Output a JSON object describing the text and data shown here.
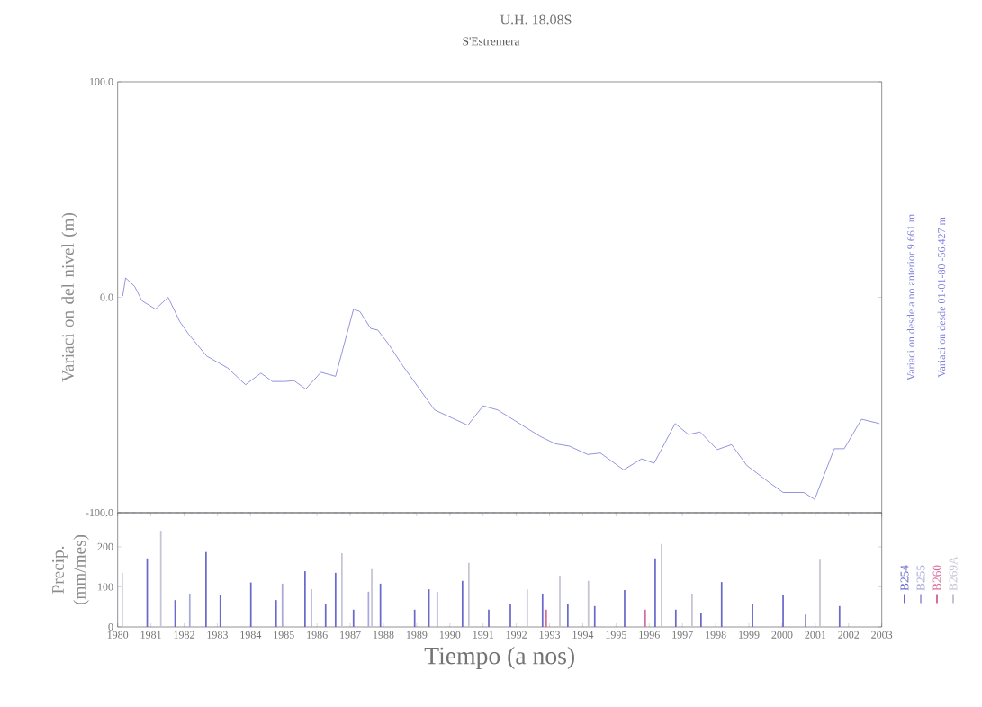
{
  "chart_data": [
    {
      "type": "line",
      "title": "U.H. 18.08S",
      "subtitle": "S'Estremera",
      "ylabel": "Variaci on del nivel (m)",
      "annotations": [
        "Variaci on desde a no anterior 9.661 m",
        "Variaci on desde 01-01-80 -56.427 m"
      ],
      "xlim": [
        1980,
        2003
      ],
      "ylim": [
        -100,
        100
      ],
      "yticks": [
        {
          "value": -100,
          "label": "-100.0"
        },
        {
          "value": 0,
          "label": "0.0"
        },
        {
          "value": 100,
          "label": "100.0"
        }
      ],
      "tick_labels": "y",
      "ref_lines": [
        {
          "axis": "y",
          "value": -100,
          "color": "#b0b0c8",
          "line_style": "dashed"
        }
      ],
      "series": [
        {
          "color": "#8c8cdc",
          "x": [
            1980.15,
            1980.24,
            1980.51,
            1980.73,
            1981.14,
            1981.52,
            1981.87,
            1982.14,
            1982.68,
            1983.31,
            1983.85,
            1984.31,
            1984.66,
            1985.04,
            1985.31,
            1985.66,
            1986.12,
            1986.56,
            1987.1,
            1987.29,
            1987.62,
            1987.83,
            1988.18,
            1988.56,
            1989.54,
            1990.54,
            1991.0,
            1991.44,
            1992.71,
            1993.17,
            1993.6,
            1994.15,
            1994.53,
            1995.23,
            1995.77,
            1996.15,
            1996.78,
            1997.18,
            1997.53,
            1998.05,
            1998.48,
            1998.94,
            1999.57,
            2000.03,
            2000.65,
            2000.98,
            2001.57,
            2001.87,
            2002.39,
            2002.93
          ],
          "values": [
            0.5,
            9.0,
            5.1,
            -1.6,
            -5.5,
            0,
            -11.3,
            -17.2,
            -27.3,
            -32.8,
            -40.6,
            -35.2,
            -39.1,
            -39.1,
            -38.7,
            -42.6,
            -34.8,
            -36.7,
            -5.5,
            -6.6,
            -14.5,
            -15.2,
            -22.3,
            -31.3,
            -52.3,
            -59.4,
            -50.4,
            -52.3,
            -64.5,
            -68.0,
            -69.1,
            -73.0,
            -72.3,
            -80.1,
            -75.0,
            -77.0,
            -58.6,
            -63.7,
            -62.5,
            -70.7,
            -68.4,
            -78.1,
            -85.5,
            -90.6,
            -90.6,
            -93.8,
            -70.3,
            -70.3,
            -56.6,
            -58.6
          ]
        }
      ]
    },
    {
      "type": "bar",
      "xlabel": "Tiempo (a nos)",
      "ylabel": "Precip. (mm/mes)",
      "xlim": [
        1980,
        2003
      ],
      "ylim": [
        0,
        285
      ],
      "xticks": [
        1980,
        1981,
        1982,
        1983,
        1984,
        1985,
        1986,
        1987,
        1988,
        1989,
        1990,
        1991,
        1992,
        1993,
        1994,
        1995,
        1996,
        1997,
        1998,
        1999,
        2000,
        2001,
        2002,
        2003
      ],
      "yticks": [
        0,
        100,
        200
      ],
      "legend": "right",
      "series": [
        {
          "name": "B254",
          "color": "#6a6acc",
          "x": [
            1980.89,
            1981.73,
            1982.66,
            1983.09,
            1984.01,
            1984.77,
            1985.64,
            1986.26,
            1986.56,
            1987.1,
            1987.91,
            1988.94,
            1989.37,
            1990.38,
            1991.17,
            1991.82,
            1992.79,
            1993.55,
            1994.36,
            1995.26,
            1996.18,
            1996.8,
            1997.56,
            1998.18,
            1999.11,
            2000.03,
            2000.71,
            2001.73
          ],
          "values": [
            171,
            67,
            187,
            79,
            111,
            67,
            139,
            56,
            135,
            43,
            108,
            43,
            94,
            115,
            43,
            58,
            83,
            58,
            52,
            92,
            171,
            43,
            36,
            112,
            58,
            79,
            31,
            52
          ]
        },
        {
          "name": "B255",
          "color": "#a8a8dc",
          "x": [
            1982.17,
            1984.96,
            1985.83,
            1987.55,
            1989.62
          ],
          "values": [
            83,
            108,
            94,
            88,
            88
          ]
        },
        {
          "name": "B260",
          "color": "#d86c9c",
          "x": [
            1992.9,
            1995.88
          ],
          "values": [
            43,
            43
          ]
        },
        {
          "name": "B269A",
          "color": "#c4c4d4",
          "x": [
            1980.14,
            1981.3,
            1986.75,
            1987.65,
            1990.57,
            1992.33,
            1993.31,
            1994.17,
            1996.37,
            1997.29,
            2001.14
          ],
          "values": [
            135,
            240,
            184,
            144,
            160,
            94,
            128,
            115,
            207,
            83,
            168
          ]
        }
      ]
    }
  ]
}
